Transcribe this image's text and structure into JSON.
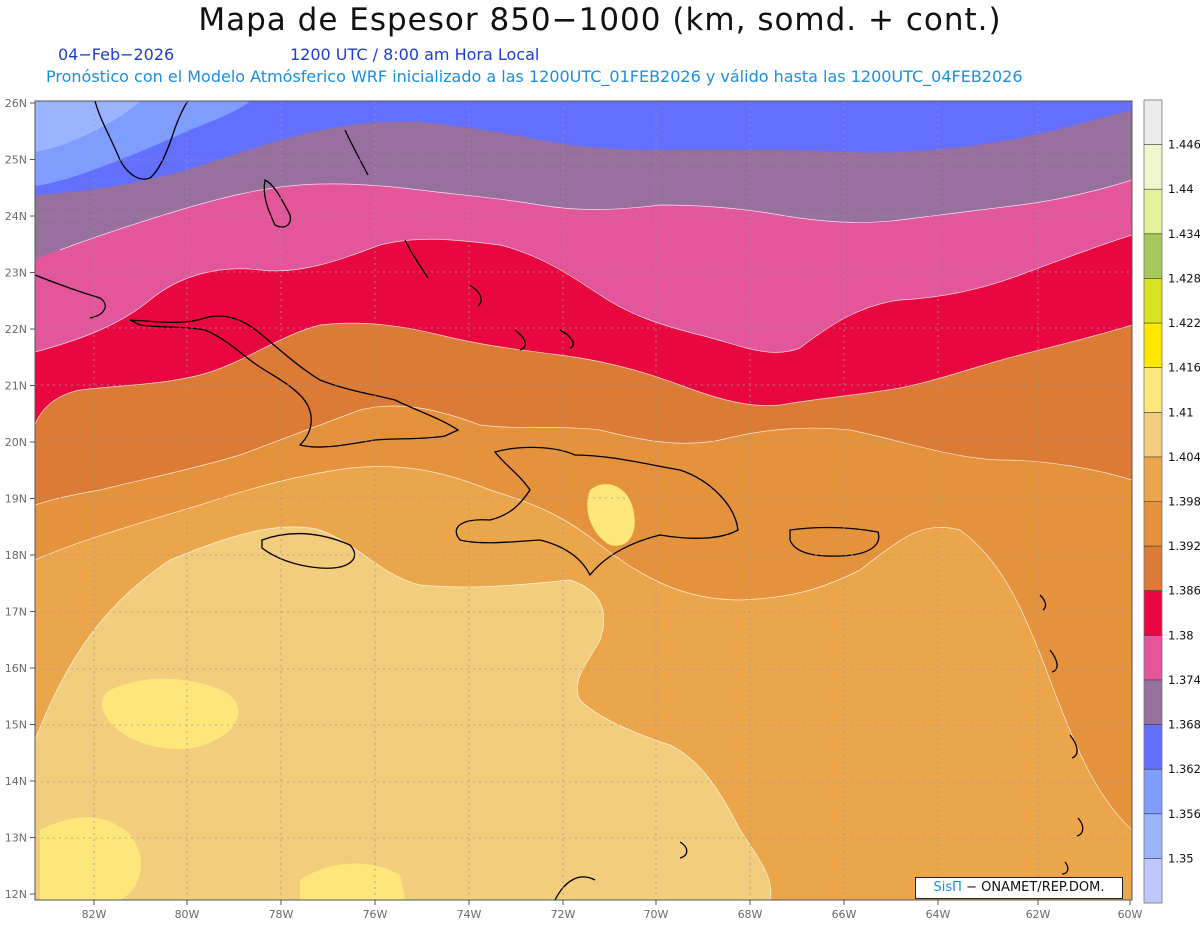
{
  "header": {
    "title": "Mapa de Espesor 850−1000 (km, somd. + cont.)",
    "date": "04−Feb−2026",
    "time": "1200 UTC / 8:00 am Hora Local",
    "subtitle": "Pronóstico con el Modelo Atmósferico WRF inicializado a las 1200UTC_01FEB2026 y válido hasta las  1200UTC_04FEB2026"
  },
  "map": {
    "lat_labels": [
      "26N",
      "25N",
      "24N",
      "23N",
      "22N",
      "21N",
      "20N",
      "19N",
      "18N",
      "17N",
      "16N",
      "15N",
      "14N",
      "13N",
      "12N"
    ],
    "lon_labels": [
      "82W",
      "80W",
      "78W",
      "76W",
      "74W",
      "72W",
      "70W",
      "68W",
      "66W",
      "64W",
      "62W",
      "60W"
    ],
    "lat_range": [
      12,
      26
    ],
    "lon_range": [
      -83.3,
      -60
    ],
    "grid": true
  },
  "colorbar": {
    "labels": [
      "1.446",
      "1.44",
      "1.434",
      "1.428",
      "1.422",
      "1.416",
      "1.41",
      "1.404",
      "1.398",
      "1.392",
      "1.386",
      "1.38",
      "1.374",
      "1.368",
      "1.362",
      "1.356",
      "1.35"
    ],
    "colors": [
      "#ebebeb",
      "#eff6cc",
      "#e2f39a",
      "#a6c95b",
      "#d9e21e",
      "#fde800",
      "#fde77a",
      "#f3cd7e",
      "#eba64c",
      "#e5923d",
      "#db7b36",
      "#e8083f",
      "#e3569c",
      "#98709e",
      "#6370ff",
      "#7f9cff",
      "#9bb4ff",
      "#bfc8ff"
    ]
  },
  "credit": {
    "brand": "SisΠ",
    "text": "− ONAMET/REP.DOM."
  }
}
